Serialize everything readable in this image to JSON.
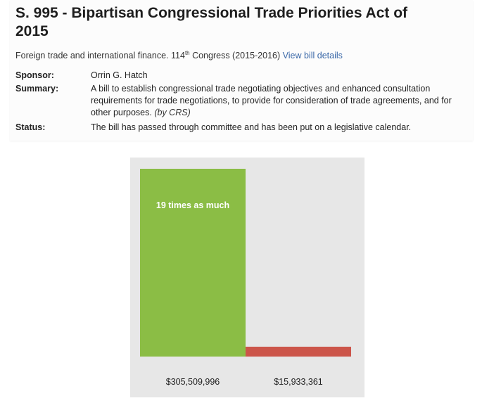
{
  "bill": {
    "title_line1": "S. 995 - Bipartisan Congressional Trade Priorities Act of",
    "title_line2": "2015",
    "topic": "Foreign trade and international finance.",
    "congress_number": "114",
    "congress_suffix": "th",
    "congress_text": " Congress (2015-2016)",
    "details_link": "View bill details"
  },
  "fields": {
    "sponsor_label": "Sponsor:",
    "sponsor_value": "Orrin G. Hatch",
    "summary_label": "Summary:",
    "summary_line1": "A bill to establish congressional trade negotiating objectives and enhanced consultation",
    "summary_line2": "requirements for trade negotiations, to provide for consideration of trade agreements, and for",
    "summary_line3": "other purposes.",
    "summary_source": "(by CRS)",
    "status_label": "Status:",
    "status_value": "The bill has passed through committee and has been put on a legislative calendar."
  },
  "chart_data": {
    "type": "bar",
    "categories": [
      "$305,509,996",
      "$15,933,361"
    ],
    "values": [
      305509996,
      15933361
    ],
    "annotation": "19 times as much",
    "colors": [
      "#8bbd45",
      "#cc554a"
    ],
    "background": "#e7e7e7"
  }
}
